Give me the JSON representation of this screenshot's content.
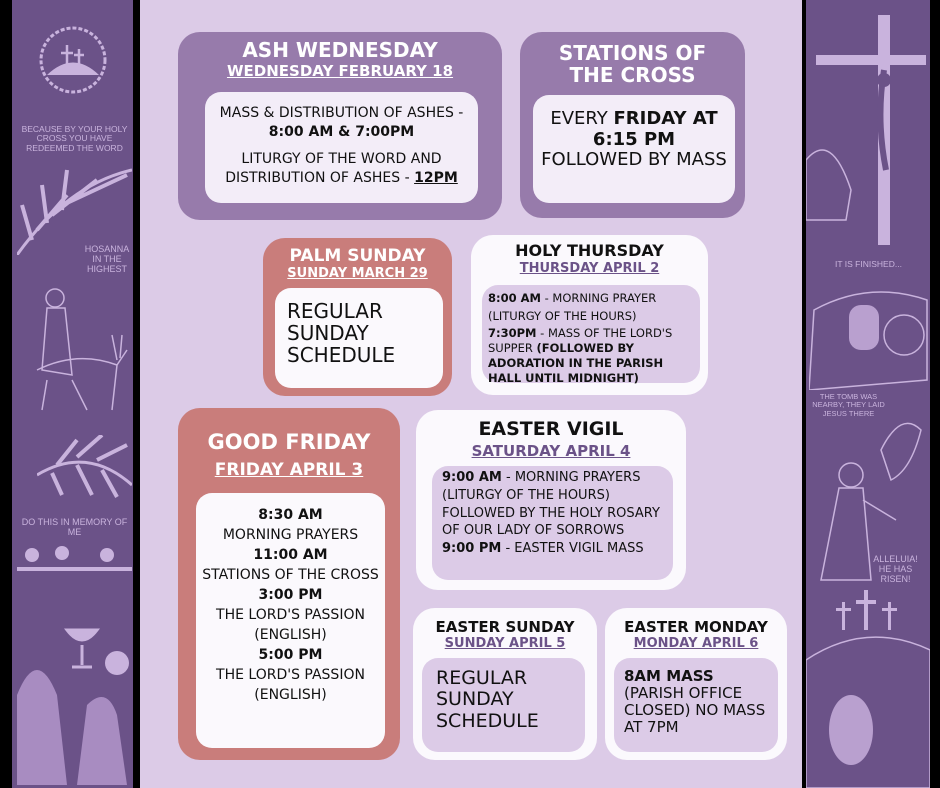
{
  "left_panel": {
    "captions": [
      "BECAUSE BY YOUR HOLY CROSS YOU HAVE REDEEMED THE WORD",
      "HOSANNA IN THE HIGHEST",
      "DO THIS IN MEMORY OF ME"
    ]
  },
  "right_panel": {
    "captions": [
      "IT IS FINISHED...",
      "THE TOMB WAS NEARBY, THEY LAID JESUS THERE",
      "ALLELUIA! HE HAS RISEN!"
    ]
  },
  "colors": {
    "panel": "#6b5288",
    "background": "#dccbe7",
    "purple_box": "#977bab",
    "rose_box": "#c97d7b",
    "accent_text": "#6b5288"
  },
  "ash": {
    "title": "ASH WEDNESDAY",
    "date": "WEDNESDAY FEBRUARY 18",
    "l1a": "MASS & DISTRIBUTION OF ASHES - ",
    "l1b": "8:00 AM & 7:00PM",
    "l2a": "LITURGY OF THE WORD AND DISTRIBUTION OF ASHES - ",
    "l2b": "12PM"
  },
  "stations": {
    "title": "STATIONS OF THE CROSS",
    "a": "EVERY ",
    "b": "FRIDAY AT 6:15 PM",
    "c": " FOLLOWED BY MASS"
  },
  "palm": {
    "title": "PALM SUNDAY",
    "date": "SUNDAY MARCH 29",
    "body": "REGULAR SUNDAY SCHEDULE"
  },
  "thursday": {
    "title": "HOLY THURSDAY",
    "date": "THURSDAY APRIL 2",
    "t1": "8:00 AM",
    "d1": " - MORNING PRAYER (LITURGY OF THE HOURS)",
    "t2": "7:30PM",
    "d2": " - MASS OF THE LORD'S SUPPER ",
    "d3": "(FOLLOWED BY ADORATION IN THE PARISH HALL UNTIL MIDNIGHT)"
  },
  "friday": {
    "title": "GOOD FRIDAY",
    "date": "FRIDAY APRIL 3",
    "items": [
      {
        "time": "8:30 AM",
        "desc": "MORNING PRAYERS"
      },
      {
        "time": "11:00 AM",
        "desc": "STATIONS OF THE CROSS"
      },
      {
        "time": "3:00 PM",
        "desc": "THE LORD'S PASSION (ENGLISH)"
      },
      {
        "time": "5:00 PM",
        "desc": "THE LORD'S PASSION (ENGLISH)"
      }
    ]
  },
  "vigil": {
    "title": "EASTER VIGIL",
    "date": "SATURDAY APRIL 4",
    "t1": "9:00 AM",
    "d1": " - MORNING PRAYERS (LITURGY OF THE HOURS) FOLLOWED BY THE HOLY ROSARY OF OUR LADY OF SORROWS",
    "t2": "9:00 PM",
    "d2": " - EASTER VIGIL MASS"
  },
  "sunday": {
    "title": "EASTER SUNDAY",
    "date": "SUNDAY APRIL 5",
    "body": "REGULAR SUNDAY SCHEDULE"
  },
  "monday": {
    "title": "EASTER MONDAY",
    "date": "MONDAY APRIL 6",
    "b": "8AM MASS",
    "body": "(PARISH OFFICE CLOSED) NO MASS AT 7PM"
  }
}
